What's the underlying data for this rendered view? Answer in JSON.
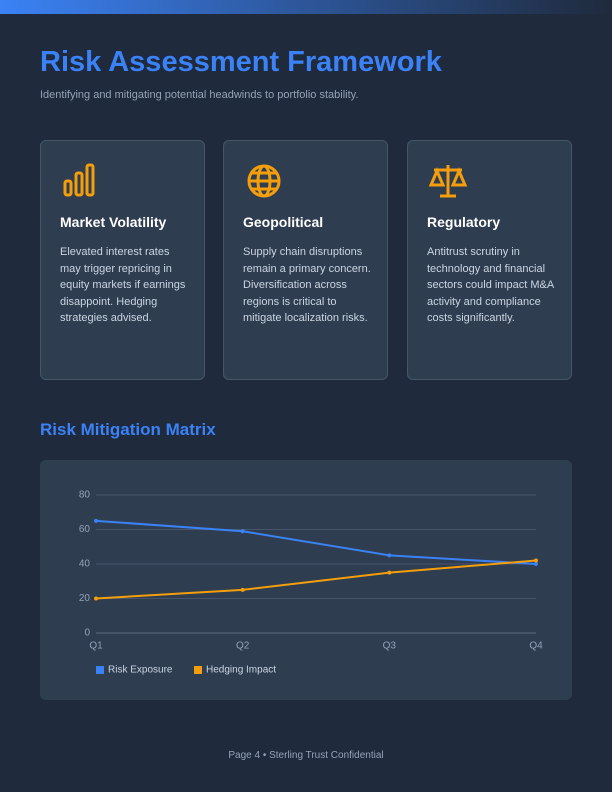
{
  "header": {
    "title": "Risk Assessment Framework",
    "subtitle": "Identifying and mitigating potential headwinds to portfolio stability."
  },
  "cards": [
    {
      "title": "Market Volatility",
      "body": "Elevated interest rates may trigger repricing in equity markets if earnings disappoint. Hedging strategies advised."
    },
    {
      "title": "Geopolitical",
      "body": "Supply chain disruptions remain a primary concern. Diversification across regions is critical to mitigate localization risks."
    },
    {
      "title": "Regulatory",
      "body": "Antitrust scrutiny in technology and financial sectors could impact M&A activity and compliance costs significantly."
    }
  ],
  "section_title": "Risk Mitigation Matrix",
  "chart_data": {
    "type": "line",
    "categories": [
      "Q1",
      "Q2",
      "Q3",
      "Q4"
    ],
    "series": [
      {
        "name": "Risk Exposure",
        "color": "#3b82f6",
        "values": [
          65,
          59,
          45,
          40
        ]
      },
      {
        "name": "Hedging Impact",
        "color": "#f59e0b",
        "values": [
          20,
          25,
          35,
          42
        ]
      }
    ],
    "ylim": [
      0,
      80
    ],
    "yticks": [
      0,
      20,
      40,
      60,
      80
    ],
    "grid": true,
    "legend": "bottom-left"
  },
  "footer": "Page 4 • Sterling Trust Confidential"
}
